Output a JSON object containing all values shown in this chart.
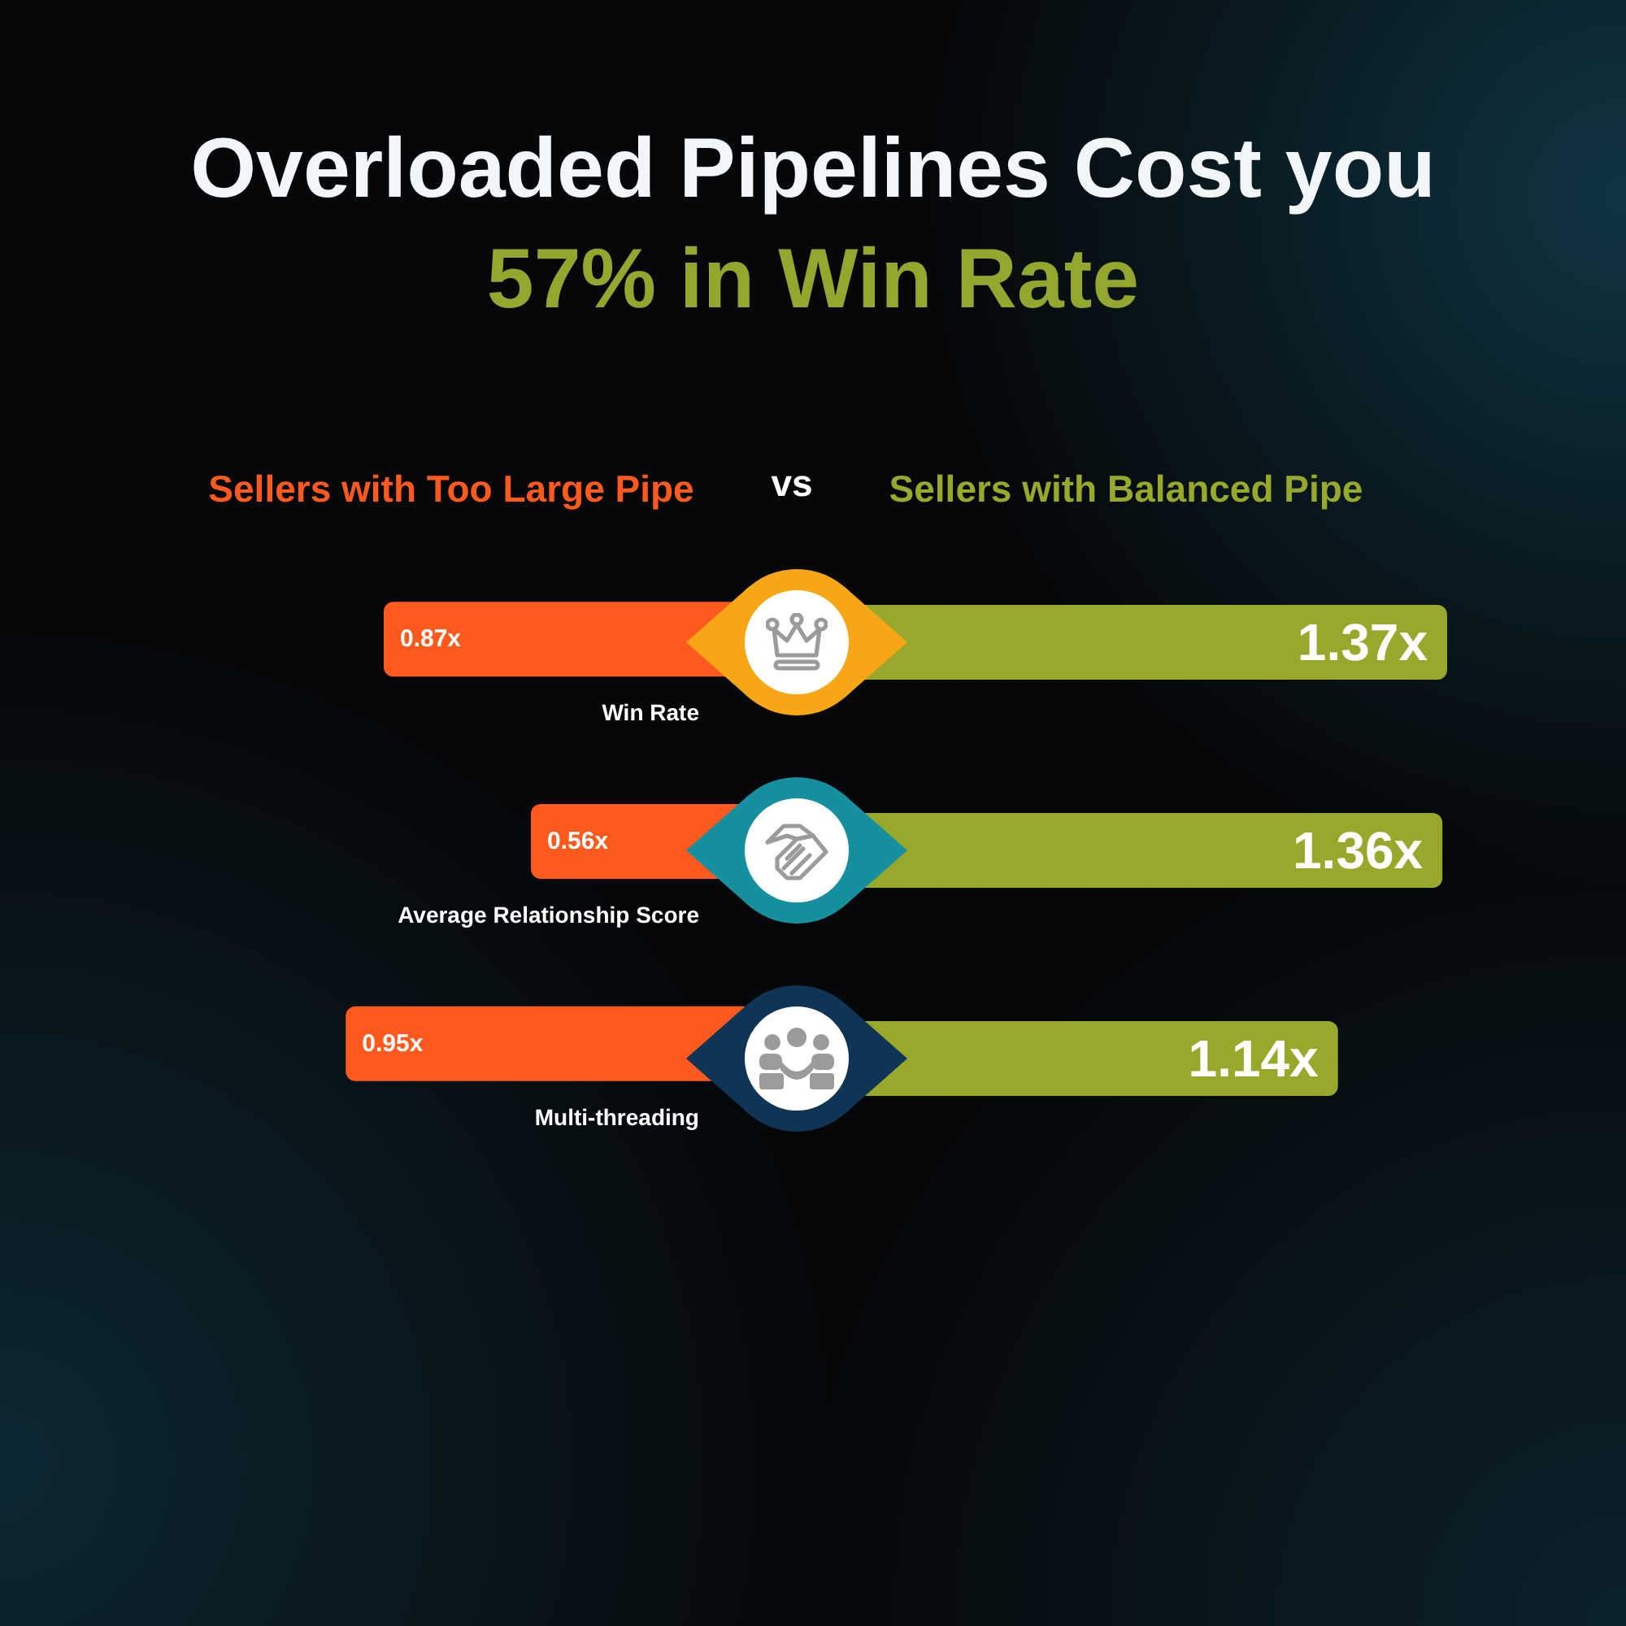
{
  "chart_data": [
    {
      "type": "bar",
      "orientation": "horizontal",
      "title": "Overloaded Pipelines Cost you",
      "subtitle": "57% in Win Rate",
      "categories": [
        "Win Rate",
        "Average Relationship Score",
        "Multi-threading"
      ],
      "series": [
        {
          "name": "Sellers with Too Large Pipe",
          "color": "#fe5a1d",
          "values": [
            0.87,
            0.56,
            0.95
          ],
          "value_labels": [
            "0.87x",
            "0.56x",
            "0.95x"
          ]
        }
      ],
      "legend": "top",
      "tick_labels": "y",
      "annotations": [
        "vs"
      ]
    },
    {
      "type": "bar",
      "orientation": "horizontal",
      "categories": [
        null,
        null,
        null
      ],
      "series": [
        {
          "name": "Sellers with Balanced Pipe",
          "color": "#97a82b",
          "values": [
            1.37,
            1.36,
            1.14
          ],
          "value_labels": [
            "1.37x",
            "1.36x",
            "1.14x"
          ]
        }
      ],
      "legend": "top",
      "tick_labels": false
    }
  ]
}
